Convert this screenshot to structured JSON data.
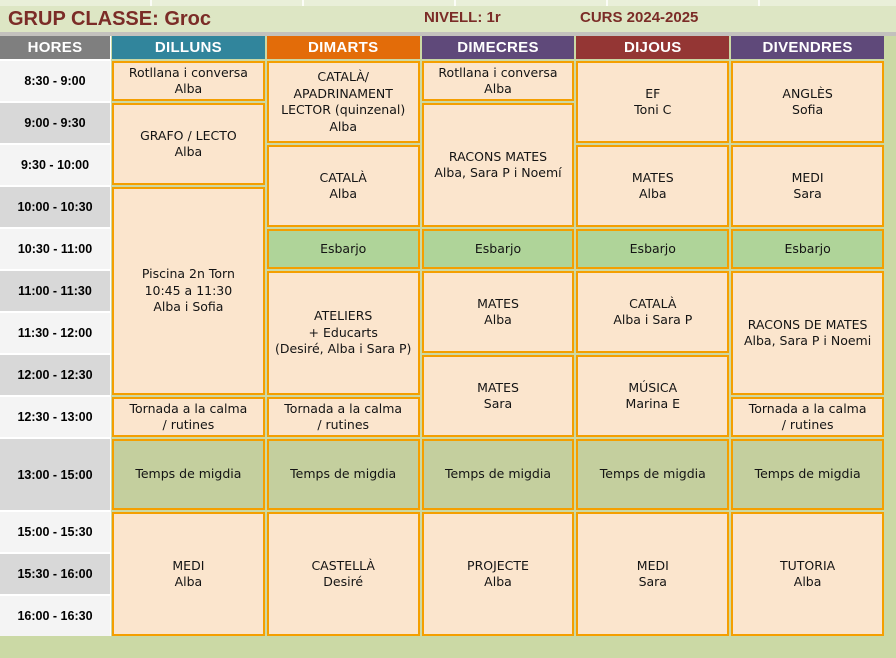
{
  "page": {
    "title": "GRUP CLASSE: Groc",
    "nivell": "NIVELL: 1r",
    "curs": "CURS 2024-2025"
  },
  "colors": {
    "page_bg": "#CBD9A5",
    "title_text": "#7B2C27",
    "cell_bg": "#FBE5CD",
    "cell_border": "#F49F00",
    "break_bg": "#AFD499",
    "lunch_bg": "#C4CF9E",
    "hores_header_bg": "#7F7F7F",
    "dilluns_header": "#31859C",
    "dimarts_header": "#E36C09",
    "dimecres_header": "#5F497A",
    "dijous_header": "#943634",
    "divendres_header": "#5F497A"
  },
  "timetable": {
    "hours_label": "HORES",
    "hours": [
      "8:30 - 9:00",
      "9:00 - 9:30",
      "9:30 - 10:00",
      "10:00 - 10:30",
      "10:30 - 11:00",
      "11:00 - 11:30",
      "11:30 - 12:00",
      "12:00 - 12:30",
      "12:30 - 13:00",
      "13:00 - 15:00",
      "15:00 - 15:30",
      "15:30 - 16:00",
      "16:00 - 16:30"
    ],
    "days": [
      {
        "key": "dilluns",
        "label": "DILLUNS",
        "color": "#31859C",
        "cells": [
          {
            "row": 0,
            "span": 1,
            "type": "class",
            "lines": [
              "Rotllana i conversa",
              "Alba"
            ]
          },
          {
            "row": 1,
            "span": 2,
            "type": "class",
            "lines": [
              "GRAFO / LECTO",
              "Alba"
            ]
          },
          {
            "row": 3,
            "span": 5,
            "type": "class",
            "lines": [
              "Piscina 2n Torn",
              "10:45 a 11:30",
              "Alba i Sofia"
            ]
          },
          {
            "row": 8,
            "span": 1,
            "type": "class",
            "lines": [
              "Tornada a la calma",
              "/ rutines"
            ]
          },
          {
            "row": 9,
            "span": 1,
            "type": "lunch",
            "lines": [
              "Temps de migdia"
            ]
          },
          {
            "row": 10,
            "span": 3,
            "type": "class",
            "lines": [
              "MEDI",
              "Alba"
            ]
          }
        ]
      },
      {
        "key": "dimarts",
        "label": "DIMARTS",
        "color": "#E36C09",
        "cells": [
          {
            "row": 0,
            "span": 2,
            "type": "class",
            "lines": [
              "CATALÀ/",
              "APADRINAMENT",
              "LECTOR (quinzenal)",
              "Alba"
            ]
          },
          {
            "row": 2,
            "span": 2,
            "type": "class",
            "lines": [
              "CATALÀ",
              "Alba"
            ]
          },
          {
            "row": 4,
            "span": 1,
            "type": "break",
            "lines": [
              "Esbarjo"
            ]
          },
          {
            "row": 5,
            "span": 3,
            "type": "class",
            "lines": [
              "ATELIERS",
              "+ Educarts",
              "(Desiré, Alba i Sara P)"
            ]
          },
          {
            "row": 8,
            "span": 1,
            "type": "class",
            "lines": [
              "Tornada a la calma",
              "/ rutines"
            ]
          },
          {
            "row": 9,
            "span": 1,
            "type": "lunch",
            "lines": [
              "Temps de migdia"
            ]
          },
          {
            "row": 10,
            "span": 3,
            "type": "class",
            "lines": [
              "CASTELLÀ",
              "Desiré"
            ]
          }
        ]
      },
      {
        "key": "dimecres",
        "label": "DIMECRES",
        "color": "#5F497A",
        "cells": [
          {
            "row": 0,
            "span": 1,
            "type": "class",
            "lines": [
              "Rotllana i conversa",
              "Alba"
            ]
          },
          {
            "row": 1,
            "span": 3,
            "type": "class",
            "lines": [
              "RACONS MATES",
              "Alba, Sara P i Noemí"
            ]
          },
          {
            "row": 4,
            "span": 1,
            "type": "break",
            "lines": [
              "Esbarjo"
            ]
          },
          {
            "row": 5,
            "span": 2,
            "type": "class",
            "lines": [
              "MATES",
              "Alba"
            ]
          },
          {
            "row": 7,
            "span": 2,
            "type": "class",
            "lines": [
              "MATES",
              "Sara"
            ]
          },
          {
            "row": 9,
            "span": 1,
            "type": "lunch",
            "lines": [
              "Temps de migdia"
            ]
          },
          {
            "row": 10,
            "span": 3,
            "type": "class",
            "lines": [
              "PROJECTE",
              "Alba"
            ]
          }
        ]
      },
      {
        "key": "dijous",
        "label": "DIJOUS",
        "color": "#943634",
        "cells": [
          {
            "row": 0,
            "span": 2,
            "type": "class",
            "lines": [
              "EF",
              "Toni C"
            ]
          },
          {
            "row": 2,
            "span": 2,
            "type": "class",
            "lines": [
              "MATES",
              "Alba"
            ]
          },
          {
            "row": 4,
            "span": 1,
            "type": "break",
            "lines": [
              "Esbarjo"
            ]
          },
          {
            "row": 5,
            "span": 2,
            "type": "class",
            "lines": [
              "CATALÀ",
              "Alba i Sara P"
            ]
          },
          {
            "row": 7,
            "span": 2,
            "type": "class",
            "lines": [
              "MÚSICA",
              "Marina E"
            ]
          },
          {
            "row": 9,
            "span": 1,
            "type": "lunch",
            "lines": [
              "Temps de migdia"
            ]
          },
          {
            "row": 10,
            "span": 3,
            "type": "class",
            "lines": [
              "MEDI",
              "Sara"
            ]
          }
        ]
      },
      {
        "key": "divendres",
        "label": "DIVENDRES",
        "color": "#5F497A",
        "cells": [
          {
            "row": 0,
            "span": 2,
            "type": "class",
            "lines": [
              "ANGLÈS",
              "Sofia"
            ]
          },
          {
            "row": 2,
            "span": 2,
            "type": "class",
            "lines": [
              "MEDI",
              "Sara"
            ]
          },
          {
            "row": 4,
            "span": 1,
            "type": "break",
            "lines": [
              "Esbarjo"
            ]
          },
          {
            "row": 5,
            "span": 3,
            "type": "class",
            "lines": [
              "RACONS DE MATES",
              "Alba, Sara P i Noemi"
            ]
          },
          {
            "row": 8,
            "span": 1,
            "type": "class",
            "lines": [
              "Tornada a la calma",
              "/ rutines"
            ]
          },
          {
            "row": 9,
            "span": 1,
            "type": "lunch",
            "lines": [
              "Temps de migdia"
            ]
          },
          {
            "row": 10,
            "span": 3,
            "type": "class",
            "lines": [
              "TUTORIA",
              "Alba"
            ]
          }
        ]
      }
    ]
  }
}
